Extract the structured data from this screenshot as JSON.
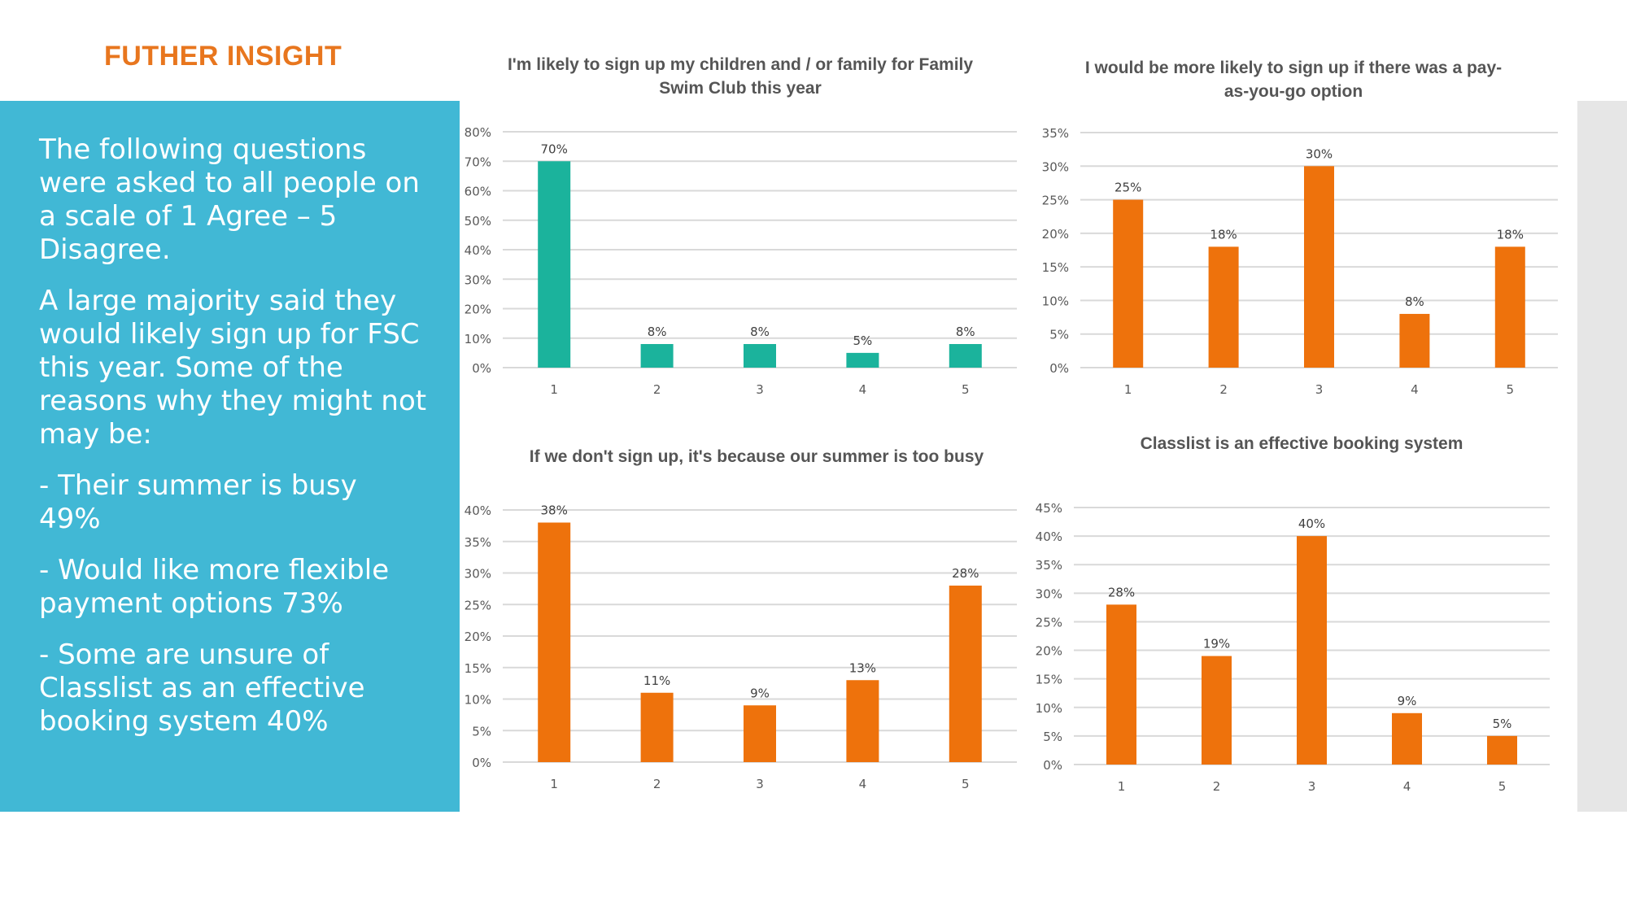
{
  "page": {
    "title": "FUTHER INSIGHT",
    "accent_color": "#E8761E",
    "panel_color": "#41B8D5"
  },
  "insight": {
    "paragraphs": [
      "The following questions were asked to all people on a scale of 1 Agree – 5 Disagree.",
      "A large majority said they would likely sign up for FSC this year. Some of the reasons why they might not may be:",
      "- Their summer is busy 49%",
      "- Would like more flexible payment options 73%",
      "- Some are unsure of Classlist as an effective booking system 40%"
    ]
  },
  "chart_data": [
    {
      "type": "bar",
      "title": "I'm likely to sign up my children and / or family for Family Swim Club this year",
      "categories": [
        "1",
        "2",
        "3",
        "4",
        "5"
      ],
      "values": [
        70,
        8,
        8,
        5,
        8
      ],
      "data_labels": [
        "70%",
        "8%",
        "8%",
        "5%",
        "8%"
      ],
      "ylim": [
        0,
        80
      ],
      "y_ticks": [
        "0%",
        "10%",
        "20%",
        "30%",
        "40%",
        "50%",
        "60%",
        "70%",
        "80%"
      ],
      "grid": true,
      "color": "#1BB39C"
    },
    {
      "type": "bar",
      "title": "I would be more likely to sign up if there was a pay-as-you-go option",
      "categories": [
        "1",
        "2",
        "3",
        "4",
        "5"
      ],
      "values": [
        25,
        18,
        30,
        8,
        18
      ],
      "data_labels": [
        "25%",
        "18%",
        "30%",
        "8%",
        "18%"
      ],
      "ylim": [
        0,
        35
      ],
      "y_ticks": [
        "0%",
        "5%",
        "10%",
        "15%",
        "20%",
        "25%",
        "30%",
        "35%"
      ],
      "grid": true,
      "color": "#EE720C"
    },
    {
      "type": "bar",
      "title": "If we don't sign up, it's because our summer is too busy",
      "categories": [
        "1",
        "2",
        "3",
        "4",
        "5"
      ],
      "values": [
        38,
        11,
        9,
        13,
        28
      ],
      "data_labels": [
        "38%",
        "11%",
        "9%",
        "13%",
        "28%"
      ],
      "ylim": [
        0,
        40
      ],
      "y_ticks": [
        "0%",
        "5%",
        "10%",
        "15%",
        "20%",
        "25%",
        "30%",
        "35%",
        "40%"
      ],
      "grid": true,
      "color": "#EE720C"
    },
    {
      "type": "bar",
      "title": "Classlist is an effective booking system",
      "categories": [
        "1",
        "2",
        "3",
        "4",
        "5"
      ],
      "values": [
        28,
        19,
        40,
        9,
        5
      ],
      "data_labels": [
        "28%",
        "19%",
        "40%",
        "9%",
        "5%"
      ],
      "ylim": [
        0,
        45
      ],
      "y_ticks": [
        "0%",
        "5%",
        "10%",
        "15%",
        "20%",
        "25%",
        "30%",
        "35%",
        "40%",
        "45%"
      ],
      "grid": true,
      "color": "#EE720C"
    }
  ]
}
